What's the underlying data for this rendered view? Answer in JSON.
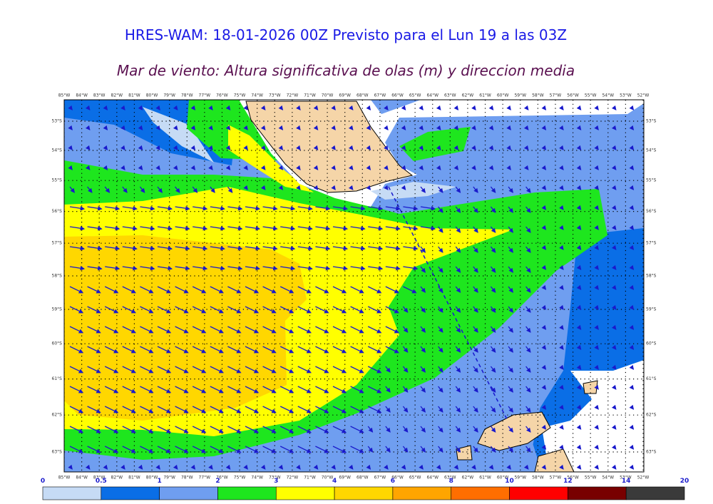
{
  "title": "HRES-WAM: 18-01-2026 00Z Previsto para el Lun 19 a las 03Z",
  "subtitle": "Mar de viento: Altura significativa de olas (m) y direccion media",
  "map": {
    "longitudes": [
      "85°W",
      "84°W",
      "83°W",
      "82°W",
      "81°W",
      "80°W",
      "79°W",
      "78°W",
      "77°W",
      "76°W",
      "75°W",
      "74°W",
      "73°W",
      "72°W",
      "71°W",
      "70°W",
      "69°W",
      "68°W",
      "67°W",
      "66°W",
      "65°W",
      "64°W",
      "63°W",
      "62°W",
      "61°W",
      "60°W",
      "59°W",
      "58°W",
      "57°W",
      "56°W",
      "55°W",
      "54°W",
      "53°W",
      "52°W"
    ],
    "latitudes": [
      "53°S",
      "54°S",
      "55°S",
      "56°S",
      "57°S",
      "58°S",
      "59°S",
      "60°S",
      "61°S",
      "62°S",
      "63°S"
    ]
  },
  "colorbar": {
    "levels": [
      0,
      0.5,
      1,
      2,
      3,
      4,
      6,
      8,
      10,
      12,
      14,
      20
    ],
    "colors": [
      "#c6dbf5",
      "#0a6ee6",
      "#6f9ef0",
      "#1ee61e",
      "#ffff00",
      "#ffd700",
      "#ffa500",
      "#ff6e00",
      "#ff0000",
      "#780000",
      "#3a3a3a"
    ]
  }
}
